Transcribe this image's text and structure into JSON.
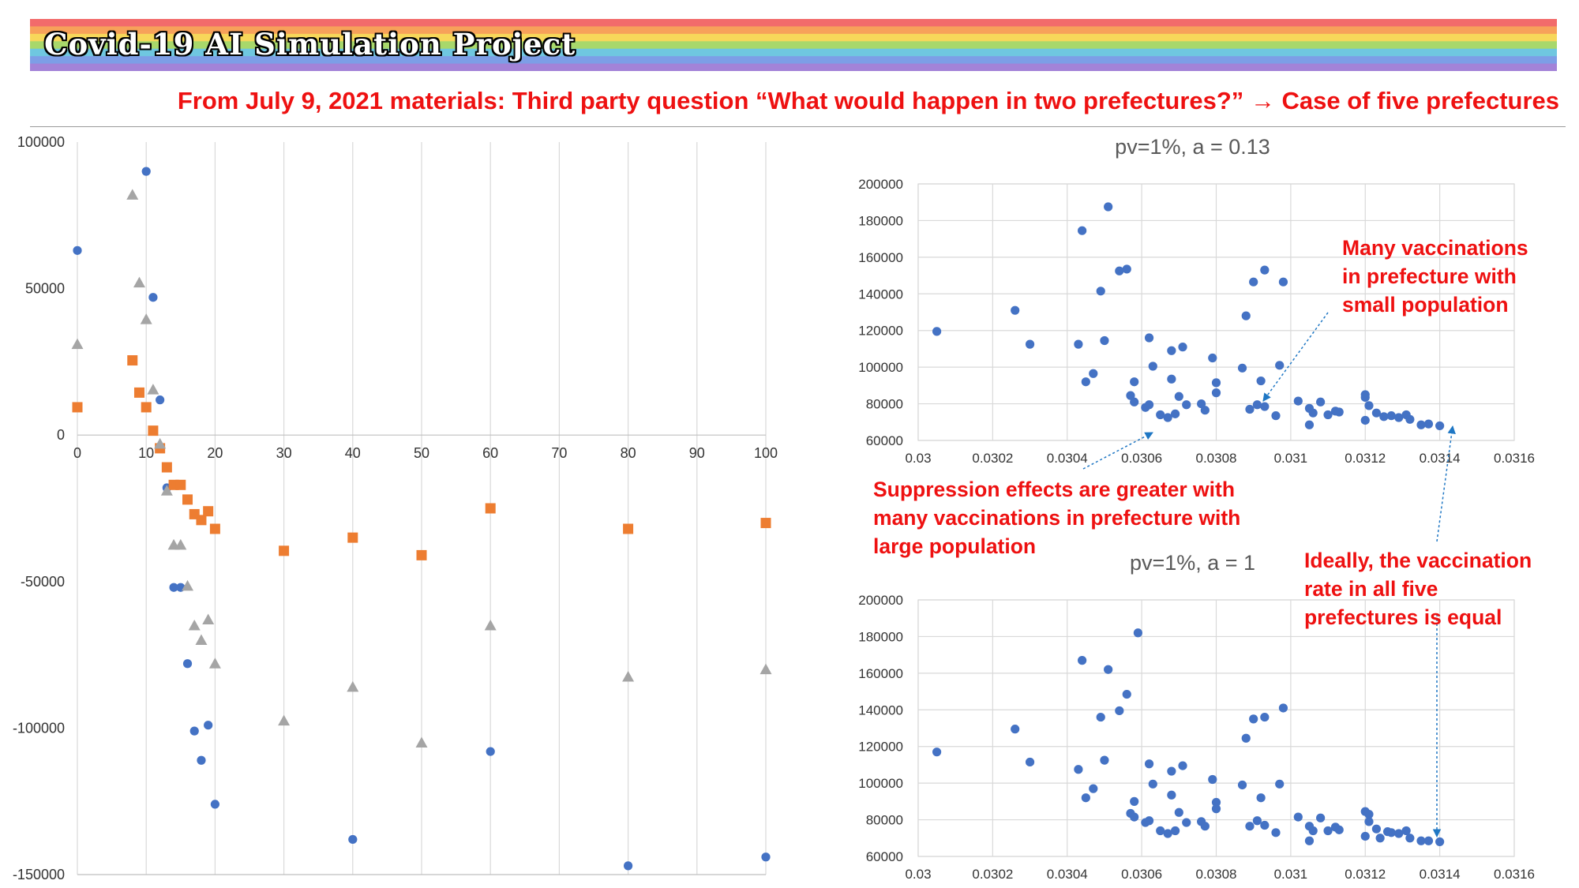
{
  "header": {
    "title": "Covid-19 AI Simulation Project",
    "subtitle": "From July 9, 2021 materials: Third party question “What would happen in two prefectures?” → Case of five prefectures",
    "rainbow": [
      "#f26b6b",
      "#f7a15a",
      "#f7d75a",
      "#a8d86b",
      "#6fc7e0",
      "#7d9ee6",
      "#a383d8"
    ]
  },
  "annotations": {
    "many_small": "Many vaccinations\nin prefecture with\nsmall population",
    "suppression": "Suppression effects are greater with\nmany vaccinations in prefecture with\nlarge population",
    "ideally": "Ideally, the vaccination\nrate in all five\nprefectures is equal",
    "color": "#ee1111",
    "arrow_color": "#1f77c4"
  },
  "chart_data": [
    {
      "type": "scatter",
      "title": "",
      "xlim": [
        0,
        100
      ],
      "ylim": [
        -150000,
        100000
      ],
      "xticks": [
        0,
        10,
        20,
        30,
        40,
        50,
        60,
        70,
        80,
        90,
        100
      ],
      "yticks": [
        100000,
        50000,
        0,
        -50000,
        -100000,
        -150000
      ],
      "grid": "vertical",
      "series": [
        {
          "marker": "circle",
          "color": "#4472c4",
          "points": [
            [
              0,
              63000
            ],
            [
              10,
              90000
            ],
            [
              11,
              47000
            ],
            [
              12,
              12000
            ],
            [
              13,
              -18000
            ],
            [
              14,
              -52000
            ],
            [
              15,
              -52000
            ],
            [
              16,
              -78000
            ],
            [
              17,
              -101000
            ],
            [
              18,
              -111000
            ],
            [
              19,
              -99000
            ],
            [
              20,
              -126000
            ],
            [
              40,
              -138000
            ],
            [
              60,
              -108000
            ],
            [
              80,
              -147000
            ],
            [
              100,
              -144000
            ]
          ]
        },
        {
          "marker": "square",
          "color": "#ed7d31",
          "points": [
            [
              0,
              9500
            ],
            [
              8,
              25500
            ],
            [
              9,
              14500
            ],
            [
              10,
              9500
            ],
            [
              11,
              1500
            ],
            [
              12,
              -4500
            ],
            [
              13,
              -11000
            ],
            [
              14,
              -17000
            ],
            [
              15,
              -17000
            ],
            [
              16,
              -22000
            ],
            [
              17,
              -27000
            ],
            [
              18,
              -29000
            ],
            [
              19,
              -26000
            ],
            [
              20,
              -32000
            ],
            [
              30,
              -39500
            ],
            [
              40,
              -35000
            ],
            [
              50,
              -41000
            ],
            [
              60,
              -25000
            ],
            [
              80,
              -32000
            ],
            [
              100,
              -30000
            ]
          ]
        },
        {
          "marker": "triangle",
          "color": "#a5a5a5",
          "points": [
            [
              0,
              31000
            ],
            [
              8,
              82000
            ],
            [
              9,
              52000
            ],
            [
              10,
              39500
            ],
            [
              11,
              15500
            ],
            [
              12,
              -3000
            ],
            [
              13,
              -19000
            ],
            [
              14,
              -37500
            ],
            [
              15,
              -37500
            ],
            [
              16,
              -51500
            ],
            [
              17,
              -65000
            ],
            [
              18,
              -70000
            ],
            [
              19,
              -63000
            ],
            [
              20,
              -78000
            ],
            [
              30,
              -97500
            ],
            [
              40,
              -86000
            ],
            [
              50,
              -105000
            ],
            [
              60,
              -65000
            ],
            [
              80,
              -82500
            ],
            [
              100,
              -80000
            ]
          ]
        }
      ]
    },
    {
      "type": "scatter",
      "title": "pv=1%, a = 0.13",
      "xlim": [
        0.03,
        0.0316
      ],
      "ylim": [
        60000,
        200000
      ],
      "xticks": [
        "0.03",
        "0.0302",
        "0.0304",
        "0.0306",
        "0.0308",
        "0.031",
        "0.0312",
        "0.0314",
        "0.0316"
      ],
      "yticks": [
        "200000",
        "180000",
        "160000",
        "140000",
        "120000",
        "100000",
        "80000",
        "60000"
      ],
      "grid": "both",
      "series": [
        {
          "marker": "circle",
          "color": "#4472c4",
          "points": [
            [
              0.03005,
              119500
            ],
            [
              0.03026,
              131000
            ],
            [
              0.0303,
              112500
            ],
            [
              0.03043,
              112500
            ],
            [
              0.03044,
              174500
            ],
            [
              0.03045,
              92000
            ],
            [
              0.03047,
              96500
            ],
            [
              0.03049,
              141500
            ],
            [
              0.0305,
              114500
            ],
            [
              0.03051,
              187500
            ],
            [
              0.03054,
              152500
            ],
            [
              0.03056,
              153500
            ],
            [
              0.03057,
              84500
            ],
            [
              0.03058,
              92000
            ],
            [
              0.03058,
              81000
            ],
            [
              0.03061,
              78000
            ],
            [
              0.03062,
              116000
            ],
            [
              0.03062,
              79500
            ],
            [
              0.03063,
              100500
            ],
            [
              0.03065,
              74000
            ],
            [
              0.03067,
              72500
            ],
            [
              0.03068,
              109000
            ],
            [
              0.03068,
              93500
            ],
            [
              0.03069,
              74500
            ],
            [
              0.0307,
              84000
            ],
            [
              0.03071,
              111000
            ],
            [
              0.03072,
              79500
            ],
            [
              0.03076,
              80000
            ],
            [
              0.03077,
              76500
            ],
            [
              0.03079,
              105000
            ],
            [
              0.0308,
              86000
            ],
            [
              0.0308,
              91500
            ],
            [
              0.03087,
              99500
            ],
            [
              0.03088,
              128000
            ],
            [
              0.03089,
              77000
            ],
            [
              0.0309,
              146500
            ],
            [
              0.03091,
              79500
            ],
            [
              0.03092,
              92500
            ],
            [
              0.03093,
              153000
            ],
            [
              0.03093,
              78500
            ],
            [
              0.03096,
              73500
            ],
            [
              0.03097,
              101000
            ],
            [
              0.03098,
              146500
            ],
            [
              0.03102,
              81500
            ],
            [
              0.03105,
              68500
            ],
            [
              0.03105,
              77500
            ],
            [
              0.03106,
              75000
            ],
            [
              0.03108,
              81000
            ],
            [
              0.0311,
              74000
            ],
            [
              0.03112,
              76000
            ],
            [
              0.03113,
              75500
            ],
            [
              0.0312,
              71000
            ],
            [
              0.0312,
              85000
            ],
            [
              0.0312,
              83500
            ],
            [
              0.03121,
              79000
            ],
            [
              0.03123,
              75000
            ],
            [
              0.03125,
              73000
            ],
            [
              0.03127,
              73500
            ],
            [
              0.03129,
              72500
            ],
            [
              0.03131,
              74000
            ],
            [
              0.03132,
              71500
            ],
            [
              0.03135,
              68500
            ],
            [
              0.03137,
              69000
            ],
            [
              0.0314,
              68000
            ]
          ]
        }
      ]
    },
    {
      "type": "scatter",
      "title": "pv=1%, a = 1",
      "xlim": [
        0.03,
        0.0316
      ],
      "ylim": [
        60000,
        200000
      ],
      "xticks": [
        "0.03",
        "0.0302",
        "0.0304",
        "0.0306",
        "0.0308",
        "0.031",
        "0.0312",
        "0.0314",
        "0.0316"
      ],
      "yticks": [
        "200000",
        "180000",
        "160000",
        "140000",
        "120000",
        "100000",
        "80000",
        "60000"
      ],
      "grid": "both",
      "series": [
        {
          "marker": "circle",
          "color": "#4472c4",
          "points": [
            [
              0.03005,
              117000
            ],
            [
              0.03026,
              129500
            ],
            [
              0.0303,
              111500
            ],
            [
              0.03043,
              107500
            ],
            [
              0.03044,
              167000
            ],
            [
              0.03045,
              92000
            ],
            [
              0.03047,
              97000
            ],
            [
              0.03049,
              136000
            ],
            [
              0.0305,
              112500
            ],
            [
              0.03051,
              162000
            ],
            [
              0.03054,
              139500
            ],
            [
              0.03056,
              148500
            ],
            [
              0.03057,
              83500
            ],
            [
              0.03058,
              90000
            ],
            [
              0.03058,
              81500
            ],
            [
              0.03059,
              182000
            ],
            [
              0.03061,
              78500
            ],
            [
              0.03062,
              110500
            ],
            [
              0.03062,
              79500
            ],
            [
              0.03063,
              99500
            ],
            [
              0.03065,
              74000
            ],
            [
              0.03067,
              72500
            ],
            [
              0.03068,
              106500
            ],
            [
              0.03068,
              93500
            ],
            [
              0.03069,
              74000
            ],
            [
              0.0307,
              84000
            ],
            [
              0.03071,
              109500
            ],
            [
              0.03072,
              78500
            ],
            [
              0.03076,
              79000
            ],
            [
              0.03077,
              76500
            ],
            [
              0.03079,
              102000
            ],
            [
              0.0308,
              86000
            ],
            [
              0.0308,
              89500
            ],
            [
              0.03087,
              99000
            ],
            [
              0.03088,
              124500
            ],
            [
              0.03089,
              76500
            ],
            [
              0.0309,
              135000
            ],
            [
              0.03091,
              79500
            ],
            [
              0.03092,
              92000
            ],
            [
              0.03093,
              136000
            ],
            [
              0.03093,
              77000
            ],
            [
              0.03096,
              73000
            ],
            [
              0.03097,
              99500
            ],
            [
              0.03098,
              141000
            ],
            [
              0.03102,
              81500
            ],
            [
              0.03105,
              68500
            ],
            [
              0.03105,
              76500
            ],
            [
              0.03106,
              74000
            ],
            [
              0.03108,
              81000
            ],
            [
              0.0311,
              74000
            ],
            [
              0.03112,
              76000
            ],
            [
              0.03113,
              74500
            ],
            [
              0.0312,
              71000
            ],
            [
              0.0312,
              84500
            ],
            [
              0.03121,
              83000
            ],
            [
              0.03121,
              79000
            ],
            [
              0.03123,
              75000
            ],
            [
              0.03124,
              70000
            ],
            [
              0.03126,
              73500
            ],
            [
              0.03127,
              73000
            ],
            [
              0.03129,
              72500
            ],
            [
              0.03131,
              74000
            ],
            [
              0.03132,
              70000
            ],
            [
              0.03135,
              68500
            ],
            [
              0.03137,
              68500
            ],
            [
              0.0314,
              68000
            ]
          ]
        }
      ]
    }
  ]
}
